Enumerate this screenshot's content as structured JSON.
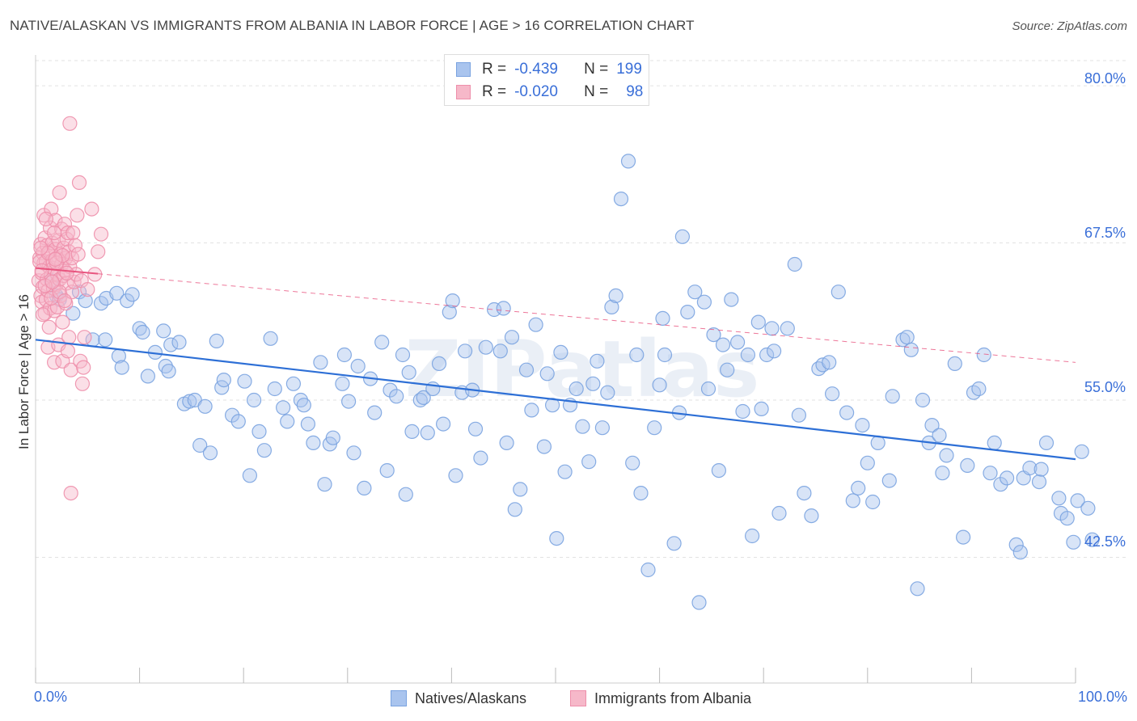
{
  "header": {
    "title": "NATIVE/ALASKAN VS IMMIGRANTS FROM ALBANIA IN LABOR FORCE | AGE > 16 CORRELATION CHART",
    "source": "Source: ZipAtlas.com"
  },
  "legend_top": {
    "rows": [
      {
        "r_label": "R =",
        "r_value": "-0.439",
        "n_label": "N =",
        "n_value": "199"
      },
      {
        "r_label": "R =",
        "r_value": "-0.020",
        "n_label": "N =",
        "n_value": "98"
      }
    ]
  },
  "legend_bottom": {
    "items": [
      {
        "label": "Natives/Alaskans"
      },
      {
        "label": "Immigrants from Albania"
      }
    ]
  },
  "colors": {
    "blue_fill": "#a9c4ee",
    "blue_stroke": "#7aa3e0",
    "blue_line": "#2d6fd6",
    "pink_fill": "#f6b8c9",
    "pink_stroke": "#ee8fab",
    "pink_line": "#e8557f",
    "tick_text": "#3a6fd8",
    "grid": "#e2e2e2"
  },
  "chart_data": {
    "type": "scatter",
    "title": "NATIVE/ALASKAN VS IMMIGRANTS FROM ALBANIA IN LABOR FORCE | AGE > 16 CORRELATION CHART",
    "ylabel": "In Labor Force | Age > 16",
    "xlabel": "",
    "xlim": [
      0,
      100
    ],
    "ylim": [
      32.5,
      82
    ],
    "x_tick_labels": [
      "0.0%",
      "100.0%"
    ],
    "y_ticks": [
      42.5,
      55.0,
      67.5,
      80.0
    ],
    "y_tick_labels": [
      "42.5%",
      "55.0%",
      "67.5%",
      "80.0%"
    ],
    "grid": true,
    "legend_position": "top-center",
    "watermark": "ZIPatlas",
    "series": [
      {
        "name": "Natives/Alaskans",
        "color": "#7aa3e0",
        "trend": {
          "x": [
            0,
            100
          ],
          "y": [
            59.8,
            50.3
          ]
        },
        "points": [
          [
            1.5,
            64.5
          ],
          [
            2.0,
            63.3
          ],
          [
            2.3,
            63.0
          ],
          [
            3.6,
            61.9
          ],
          [
            4.2,
            63.6
          ],
          [
            4.8,
            62.9
          ],
          [
            5.5,
            59.8
          ],
          [
            6.3,
            62.7
          ],
          [
            6.8,
            63.1
          ],
          [
            6.7,
            59.8
          ],
          [
            7.8,
            63.5
          ],
          [
            8.0,
            58.5
          ],
          [
            8.3,
            57.6
          ],
          [
            8.8,
            62.9
          ],
          [
            9.3,
            63.4
          ],
          [
            10.0,
            60.7
          ],
          [
            10.3,
            60.4
          ],
          [
            10.8,
            56.9
          ],
          [
            11.5,
            58.8
          ],
          [
            12.3,
            60.5
          ],
          [
            12.5,
            57.7
          ],
          [
            12.8,
            57.3
          ],
          [
            13.0,
            59.4
          ],
          [
            13.8,
            59.6
          ],
          [
            14.3,
            54.7
          ],
          [
            14.8,
            54.9
          ],
          [
            15.3,
            55.0
          ],
          [
            15.8,
            51.4
          ],
          [
            16.3,
            54.5
          ],
          [
            16.8,
            50.8
          ],
          [
            17.4,
            59.7
          ],
          [
            17.9,
            56.0
          ],
          [
            18.1,
            56.6
          ],
          [
            18.9,
            53.8
          ],
          [
            19.5,
            53.3
          ],
          [
            20.1,
            56.5
          ],
          [
            20.6,
            49.0
          ],
          [
            21.0,
            55.0
          ],
          [
            21.5,
            52.5
          ],
          [
            22.0,
            51.0
          ],
          [
            22.6,
            59.9
          ],
          [
            23.0,
            55.9
          ],
          [
            23.8,
            54.4
          ],
          [
            24.2,
            53.3
          ],
          [
            24.8,
            56.3
          ],
          [
            25.5,
            55.0
          ],
          [
            25.8,
            54.6
          ],
          [
            26.2,
            53.1
          ],
          [
            26.7,
            51.6
          ],
          [
            27.4,
            58.0
          ],
          [
            27.8,
            48.3
          ],
          [
            28.3,
            51.5
          ],
          [
            28.6,
            52.0
          ],
          [
            29.5,
            56.3
          ],
          [
            29.7,
            58.6
          ],
          [
            30.1,
            54.9
          ],
          [
            30.6,
            50.8
          ],
          [
            31.0,
            57.7
          ],
          [
            31.6,
            48.0
          ],
          [
            32.2,
            56.7
          ],
          [
            32.6,
            54.0
          ],
          [
            33.3,
            59.6
          ],
          [
            33.8,
            49.4
          ],
          [
            34.1,
            55.8
          ],
          [
            34.7,
            55.3
          ],
          [
            35.3,
            58.6
          ],
          [
            35.6,
            47.5
          ],
          [
            35.9,
            57.2
          ],
          [
            36.2,
            52.5
          ],
          [
            37.0,
            55.0
          ],
          [
            37.3,
            55.2
          ],
          [
            37.7,
            52.4
          ],
          [
            38.2,
            55.9
          ],
          [
            38.8,
            57.9
          ],
          [
            39.2,
            53.1
          ],
          [
            39.8,
            62.0
          ],
          [
            40.1,
            62.9
          ],
          [
            40.4,
            49.0
          ],
          [
            41.0,
            55.6
          ],
          [
            41.3,
            58.9
          ],
          [
            42.0,
            55.8
          ],
          [
            42.3,
            52.7
          ],
          [
            42.8,
            50.4
          ],
          [
            43.3,
            59.2
          ],
          [
            44.1,
            62.2
          ],
          [
            44.7,
            58.9
          ],
          [
            45.0,
            62.3
          ],
          [
            45.3,
            51.6
          ],
          [
            45.8,
            60.0
          ],
          [
            46.1,
            46.3
          ],
          [
            46.6,
            47.9
          ],
          [
            47.2,
            57.4
          ],
          [
            47.7,
            54.2
          ],
          [
            48.1,
            61.0
          ],
          [
            48.9,
            51.3
          ],
          [
            49.2,
            57.1
          ],
          [
            49.7,
            54.6
          ],
          [
            50.1,
            44.0
          ],
          [
            50.5,
            58.8
          ],
          [
            50.9,
            49.3
          ],
          [
            51.4,
            54.6
          ],
          [
            52.0,
            55.9
          ],
          [
            52.6,
            52.9
          ],
          [
            53.2,
            50.1
          ],
          [
            53.6,
            56.3
          ],
          [
            54.0,
            58.1
          ],
          [
            54.5,
            52.8
          ],
          [
            55.0,
            55.6
          ],
          [
            55.4,
            62.4
          ],
          [
            55.8,
            63.3
          ],
          [
            56.3,
            71.0
          ],
          [
            57.0,
            74.0
          ],
          [
            57.4,
            50.0
          ],
          [
            57.8,
            58.6
          ],
          [
            58.2,
            47.6
          ],
          [
            58.9,
            41.5
          ],
          [
            59.5,
            52.8
          ],
          [
            60.0,
            56.2
          ],
          [
            60.3,
            61.5
          ],
          [
            60.5,
            58.6
          ],
          [
            61.4,
            43.6
          ],
          [
            61.9,
            54.0
          ],
          [
            62.2,
            68.0
          ],
          [
            62.7,
            62.0
          ],
          [
            63.4,
            63.6
          ],
          [
            63.8,
            38.9
          ],
          [
            64.3,
            62.8
          ],
          [
            64.7,
            55.9
          ],
          [
            65.2,
            60.2
          ],
          [
            65.7,
            49.4
          ],
          [
            66.1,
            59.4
          ],
          [
            66.5,
            57.4
          ],
          [
            66.9,
            63.0
          ],
          [
            67.5,
            59.6
          ],
          [
            68.0,
            54.1
          ],
          [
            68.5,
            58.6
          ],
          [
            68.9,
            44.2
          ],
          [
            69.5,
            61.2
          ],
          [
            69.8,
            54.3
          ],
          [
            70.3,
            58.6
          ],
          [
            70.8,
            60.7
          ],
          [
            71.0,
            58.9
          ],
          [
            71.5,
            46.0
          ],
          [
            72.3,
            60.7
          ],
          [
            73.0,
            65.8
          ],
          [
            73.4,
            53.8
          ],
          [
            73.9,
            47.6
          ],
          [
            74.6,
            45.8
          ],
          [
            75.3,
            57.5
          ],
          [
            75.7,
            57.8
          ],
          [
            76.3,
            58.0
          ],
          [
            76.6,
            55.5
          ],
          [
            77.2,
            63.6
          ],
          [
            78.0,
            54.0
          ],
          [
            78.6,
            47.0
          ],
          [
            79.1,
            48.0
          ],
          [
            79.5,
            53.0
          ],
          [
            80.0,
            50.0
          ],
          [
            80.5,
            46.9
          ],
          [
            81.0,
            51.6
          ],
          [
            82.1,
            48.6
          ],
          [
            82.4,
            55.3
          ],
          [
            83.4,
            59.8
          ],
          [
            83.8,
            60.0
          ],
          [
            84.2,
            59.0
          ],
          [
            84.8,
            40.0
          ],
          [
            85.3,
            55.0
          ],
          [
            85.9,
            51.6
          ],
          [
            86.2,
            53.0
          ],
          [
            86.9,
            52.2
          ],
          [
            87.2,
            49.2
          ],
          [
            87.6,
            50.6
          ],
          [
            88.4,
            57.9
          ],
          [
            89.2,
            44.1
          ],
          [
            89.6,
            49.8
          ],
          [
            90.2,
            55.6
          ],
          [
            90.7,
            55.9
          ],
          [
            91.2,
            58.6
          ],
          [
            91.8,
            49.2
          ],
          [
            92.2,
            51.6
          ],
          [
            92.8,
            48.3
          ],
          [
            93.4,
            48.8
          ],
          [
            94.3,
            43.5
          ],
          [
            94.7,
            42.9
          ],
          [
            95.0,
            48.8
          ],
          [
            95.6,
            49.6
          ],
          [
            96.5,
            48.5
          ],
          [
            96.7,
            49.5
          ],
          [
            97.2,
            51.6
          ],
          [
            98.4,
            47.2
          ],
          [
            98.6,
            46.0
          ],
          [
            99.2,
            45.6
          ],
          [
            99.8,
            43.7
          ],
          [
            100.2,
            47.0
          ],
          [
            100.6,
            50.9
          ],
          [
            101.2,
            46.4
          ],
          [
            101.6,
            43.9
          ]
        ]
      },
      {
        "name": "Immigrants from Albania",
        "color": "#ee8fab",
        "trend": {
          "x": [
            0,
            100
          ],
          "y": [
            65.5,
            58.0
          ]
        },
        "trend_solid_until_x": 6.0,
        "points": [
          [
            0.3,
            64.5
          ],
          [
            0.4,
            66.3
          ],
          [
            0.5,
            67.4
          ],
          [
            0.5,
            63.3
          ],
          [
            0.6,
            65.1
          ],
          [
            0.6,
            62.8
          ],
          [
            0.7,
            66.7
          ],
          [
            0.7,
            64.0
          ],
          [
            0.8,
            69.7
          ],
          [
            0.8,
            65.9
          ],
          [
            0.9,
            67.9
          ],
          [
            0.9,
            61.9
          ],
          [
            1.0,
            63.0
          ],
          [
            1.0,
            66.0
          ],
          [
            1.1,
            64.6
          ],
          [
            1.1,
            67.3
          ],
          [
            1.2,
            59.2
          ],
          [
            1.2,
            63.7
          ],
          [
            1.3,
            65.6
          ],
          [
            1.3,
            66.8
          ],
          [
            1.4,
            68.7
          ],
          [
            1.4,
            62.3
          ],
          [
            1.5,
            64.9
          ],
          [
            1.5,
            70.2
          ],
          [
            1.6,
            67.5
          ],
          [
            1.6,
            66.1
          ],
          [
            1.7,
            65.5
          ],
          [
            1.7,
            63.9
          ],
          [
            1.8,
            58.0
          ],
          [
            1.8,
            62.1
          ],
          [
            1.9,
            67.0
          ],
          [
            1.9,
            69.3
          ],
          [
            2.0,
            66.3
          ],
          [
            2.0,
            64.2
          ],
          [
            2.1,
            65.0
          ],
          [
            2.1,
            62.4
          ],
          [
            2.2,
            67.7
          ],
          [
            2.2,
            59.4
          ],
          [
            2.3,
            71.5
          ],
          [
            2.3,
            64.6
          ],
          [
            2.4,
            66.6
          ],
          [
            2.4,
            63.3
          ],
          [
            2.5,
            68.6
          ],
          [
            2.5,
            65.8
          ],
          [
            2.6,
            61.2
          ],
          [
            2.6,
            58.1
          ],
          [
            2.7,
            67.1
          ],
          [
            2.7,
            64.9
          ],
          [
            2.8,
            69.0
          ],
          [
            2.8,
            65.3
          ],
          [
            2.9,
            62.7
          ],
          [
            2.9,
            66.3
          ],
          [
            3.0,
            67.8
          ],
          [
            3.0,
            64.3
          ],
          [
            3.1,
            68.3
          ],
          [
            3.1,
            58.9
          ],
          [
            3.2,
            66.8
          ],
          [
            3.2,
            60.0
          ],
          [
            3.3,
            77.0
          ],
          [
            3.3,
            65.6
          ],
          [
            3.4,
            57.4
          ],
          [
            3.4,
            47.6
          ],
          [
            3.5,
            63.6
          ],
          [
            3.5,
            66.3
          ],
          [
            3.6,
            68.3
          ],
          [
            3.7,
            64.4
          ],
          [
            3.8,
            67.3
          ],
          [
            3.9,
            65.0
          ],
          [
            4.0,
            69.7
          ],
          [
            4.1,
            66.6
          ],
          [
            4.2,
            72.3
          ],
          [
            4.3,
            58.1
          ],
          [
            4.4,
            64.5
          ],
          [
            4.5,
            56.3
          ],
          [
            4.6,
            57.6
          ],
          [
            4.7,
            60.0
          ],
          [
            5.0,
            63.8
          ],
          [
            5.4,
            70.2
          ],
          [
            5.7,
            65.0
          ],
          [
            6.0,
            66.8
          ],
          [
            6.3,
            68.2
          ],
          [
            0.4,
            66.0
          ],
          [
            0.6,
            65.3
          ],
          [
            0.9,
            64.1
          ],
          [
            1.2,
            66.7
          ],
          [
            1.5,
            63.1
          ],
          [
            1.8,
            68.3
          ],
          [
            2.0,
            65.9
          ],
          [
            2.3,
            63.6
          ],
          [
            2.6,
            66.5
          ],
          [
            2.8,
            62.9
          ],
          [
            3.0,
            65.1
          ],
          [
            0.5,
            67.1
          ],
          [
            0.7,
            61.8
          ],
          [
            1.0,
            69.4
          ],
          [
            1.3,
            60.8
          ],
          [
            1.6,
            64.4
          ],
          [
            1.9,
            66.2
          ]
        ]
      }
    ]
  }
}
